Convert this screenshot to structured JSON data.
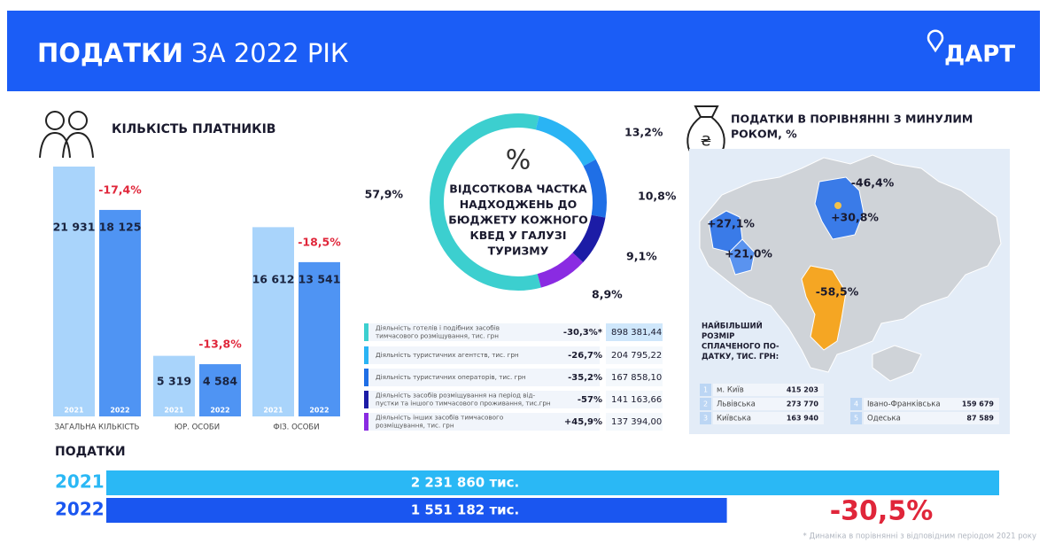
{
  "header": {
    "title_bold": "ПОДАТКИ",
    "title_rest": "ЗА 2022 РІК",
    "logo": "ДАРТ"
  },
  "payers": {
    "title": "КІЛЬКІСТЬ ПЛАТНИКІВ",
    "colors": [
      "#a9d4fb",
      "#4f94f3"
    ],
    "groups": [
      {
        "label": "ЗАГАЛЬНА КІЛЬКІСТЬ",
        "change": "-17,4%",
        "years": [
          "2021",
          "2022"
        ],
        "values": [
          21931,
          18125
        ],
        "value_labels": [
          "21 931",
          "18 125"
        ]
      },
      {
        "label": "ЮР. ОСОБИ",
        "change": "-13,8%",
        "years": [
          "2021",
          "2022"
        ],
        "values": [
          5319,
          4584
        ],
        "value_labels": [
          "5 319",
          "4 584"
        ]
      },
      {
        "label": "ФІЗ. ОСОБИ",
        "change": "-18,5%",
        "years": [
          "2021",
          "2022"
        ],
        "values": [
          16612,
          13541
        ],
        "value_labels": [
          "16 612",
          "13 541"
        ]
      }
    ]
  },
  "shares": {
    "type": "pie",
    "center_symbol": "%",
    "center_lines": [
      "ВІДСОТКОВА ЧАСТКА",
      "НАДХОДЖЕНЬ ДО",
      "БЮДЖЕТУ КОЖНОГО",
      "КВЕД У ГАЛУЗІ",
      "ТУРИЗМУ"
    ],
    "values": [
      57.9,
      13.2,
      10.8,
      9.1,
      8.9
    ],
    "value_labels": [
      "57,9%",
      "13,2%",
      "10,8%",
      "9,1%",
      "8,9%"
    ],
    "colors": [
      "#3ccfcf",
      "#2ab4f4",
      "#1f6fe6",
      "#1c1ca6",
      "#8a2be2"
    ]
  },
  "table": {
    "rows": [
      {
        "label": [
          "Діяльність готелів і подібних засобів",
          "тимчасового розміщування, тис. грн"
        ],
        "change": "-30,3%*",
        "value": "898 381,44"
      },
      {
        "label": [
          "Діяльність туристичних агентств, тис. грн"
        ],
        "change": "-26,7%",
        "value": "204 795,22"
      },
      {
        "label": [
          "Діяльність туристичних операторів, тис. грн"
        ],
        "change": "-35,2%",
        "value": "167 858,10"
      },
      {
        "label": [
          "Діяльність засобів розміщування на період від-",
          "пустки та іншого тимчасового проживання, тис.грн"
        ],
        "change": "-57%",
        "value": "141 163,66"
      },
      {
        "label": [
          "Діяльність інших засобів тимчасового",
          "розміщування, тис. грн"
        ],
        "change": "+45,9%",
        "value": "137 394,00"
      }
    ]
  },
  "map": {
    "title": [
      "ПОДАТКИ В ПОРІВНЯННІ З МИНУЛИМ",
      "РОКОМ, %"
    ],
    "labels": [
      "-46,4%",
      "+27,1%",
      "+30,8%",
      "+21,0%",
      "-58,5%"
    ],
    "legend_title": [
      "НАЙБІЛЬШИЙ",
      "РОЗМІР",
      "СПЛАЧЕНОГО ПО-",
      "ДАТКУ, ТИС. ГРН:"
    ],
    "top": [
      {
        "rank": 1,
        "name": "м. Київ",
        "value": "415 203"
      },
      {
        "rank": 2,
        "name": "Львівська",
        "value": "273 770"
      },
      {
        "rank": 3,
        "name": "Київська",
        "value": "163 940"
      },
      {
        "rank": 4,
        "name": "Івано-Франківська",
        "value": "159 679"
      },
      {
        "rank": 5,
        "name": "Одеська",
        "value": "87 589"
      }
    ]
  },
  "taxes": {
    "title": "ПОДАТКИ",
    "years": [
      "2021",
      "2022"
    ],
    "values": [
      2231860,
      1551182
    ],
    "value_labels": [
      "2 231 860 тис.",
      "1 551 182 тис."
    ],
    "change": "-30,5%",
    "colors": [
      "#2ab8f5",
      "#1a56f0"
    ]
  },
  "footnote": "* Динаміка в порівнянні з відповідним періодом 2021 року"
}
